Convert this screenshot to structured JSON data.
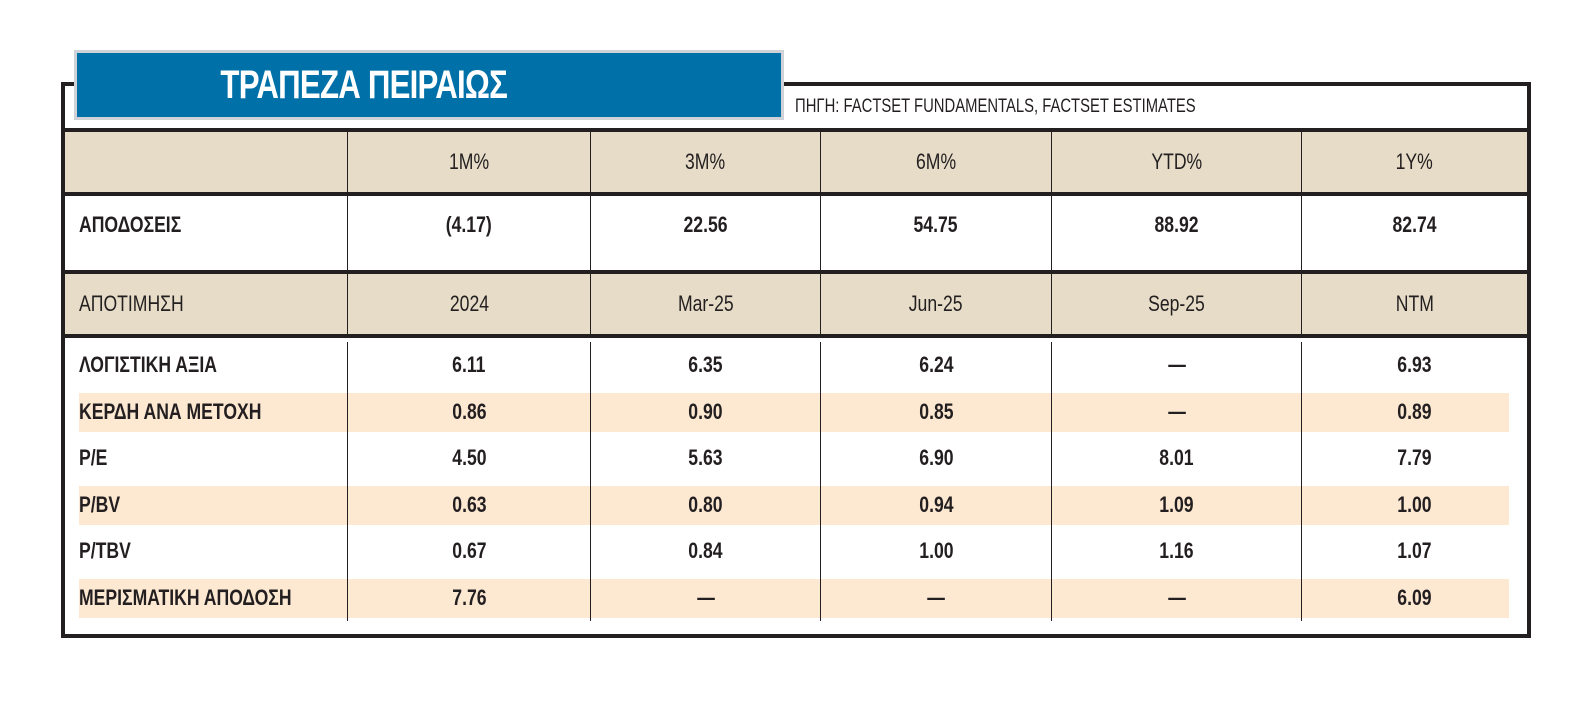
{
  "header": {
    "title": "ΤΡΑΠΕΖΑ ΠΕΙΡΑΙΩΣ",
    "source": "ΠΗΓΗ: FACTSET FUNDAMENTALS, FACTSET ESTIMATES"
  },
  "colors": {
    "title_bg": "#0070a8",
    "header_band": "#e6dcc8",
    "stripe_band": "#fde8d2",
    "border": "#231f20"
  },
  "performance": {
    "headers": [
      "",
      "1M%",
      "3M%",
      "6M%",
      "YTD%",
      "1Y%"
    ],
    "row": {
      "label": "ΑΠΟΔΟΣΕΙΣ",
      "values": [
        "(4.17)",
        "22.56",
        "54.75",
        "88.92",
        "82.74"
      ]
    }
  },
  "valuation": {
    "headers": [
      "ΑΠΟΤΙΜΗΣΗ",
      "2024",
      "Mar-25",
      "Jun-25",
      "Sep-25",
      "NTM"
    ],
    "rows": [
      {
        "label": "ΛΟΓΙΣΤΙΚΗ ΑΞΙΑ",
        "values": [
          "6.11",
          "6.35",
          "6.24",
          "—",
          "6.93"
        ]
      },
      {
        "label": "ΚΕΡΔΗ ΑΝΑ ΜΕΤΟΧΗ",
        "values": [
          "0.86",
          "0.90",
          "0.85",
          "—",
          "0.89"
        ]
      },
      {
        "label": "P/E",
        "values": [
          "4.50",
          "5.63",
          "6.90",
          "8.01",
          "7.79"
        ]
      },
      {
        "label": "P/BV",
        "values": [
          "0.63",
          "0.80",
          "0.94",
          "1.09",
          "1.00"
        ]
      },
      {
        "label": "P/TBV",
        "values": [
          "0.67",
          "0.84",
          "1.00",
          "1.16",
          "1.07"
        ]
      },
      {
        "label": "ΜΕΡΙΣΜΑΤΙΚΗ ΑΠΟΔΟΣΗ",
        "values": [
          "7.76",
          "—",
          "—",
          "—",
          "6.09"
        ]
      }
    ]
  }
}
